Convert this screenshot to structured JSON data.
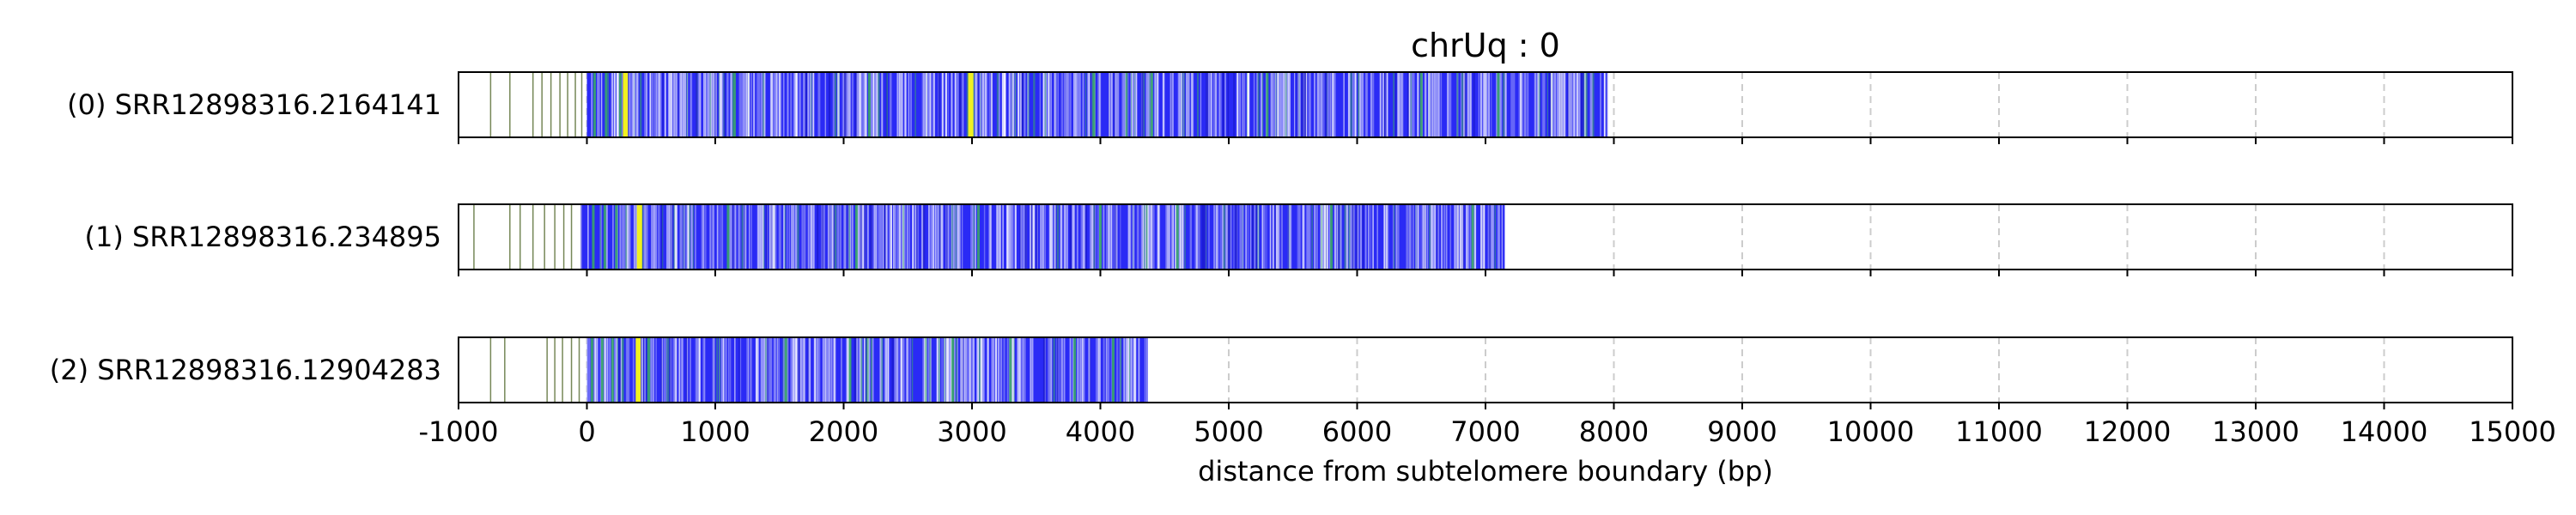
{
  "chart_data": {
    "type": "heatmap",
    "title": "chrUq : 0",
    "xlabel": "distance from subtelomere boundary (bp)",
    "xlim": [
      -1000,
      15000
    ],
    "xticks": [
      -1000,
      0,
      1000,
      2000,
      3000,
      4000,
      5000,
      6000,
      7000,
      8000,
      9000,
      10000,
      11000,
      12000,
      13000,
      14000,
      15000
    ],
    "tick_labels": [
      "-1000",
      "0",
      "1000",
      "2000",
      "3000",
      "4000",
      "5000",
      "6000",
      "7000",
      "8000",
      "9000",
      "10000",
      "11000",
      "12000",
      "13000",
      "14000",
      "15000"
    ],
    "grid": "vertical dashed",
    "colors": {
      "dominant": "#2a2af5",
      "light": "#8c8cf5",
      "green": "#3aa66a",
      "yellow": "#f0f020",
      "sparse_line": "#556b2f",
      "grid": "#cccccc"
    },
    "reads": [
      {
        "label": "(0) SRR12898316.2164141",
        "start": -1000,
        "end": 7950,
        "dense_start": 0,
        "sparse_lines": [
          -750,
          -600,
          -420,
          -350,
          -280,
          -210,
          -150,
          -90,
          -40
        ],
        "green_marks": [
          60,
          150,
          260,
          1150,
          2200,
          2980,
          3950,
          4400,
          5300,
          6500,
          7100
        ],
        "yellow_marks": [
          300,
          2990
        ]
      },
      {
        "label": "(1) SRR12898316.234895",
        "start": -1000,
        "end": 7150,
        "dense_start": -50,
        "sparse_lines": [
          -880,
          -600,
          -520,
          -420,
          -330,
          -250,
          -180,
          -120
        ],
        "green_marks": [
          50,
          140,
          230,
          1100,
          2100,
          3050,
          4000,
          4600,
          5800,
          6900
        ],
        "yellow_marks": [
          410
        ]
      },
      {
        "label": "(2) SRR12898316.12904283",
        "start": -1000,
        "end": 4370,
        "dense_start": 0,
        "sparse_lines": [
          -750,
          -640,
          -310,
          -250,
          -190,
          -120,
          -60
        ],
        "green_marks": [
          40,
          120,
          200,
          480,
          1550,
          2050,
          2850,
          3300,
          3800,
          4100
        ],
        "yellow_marks": [
          400
        ]
      }
    ]
  }
}
